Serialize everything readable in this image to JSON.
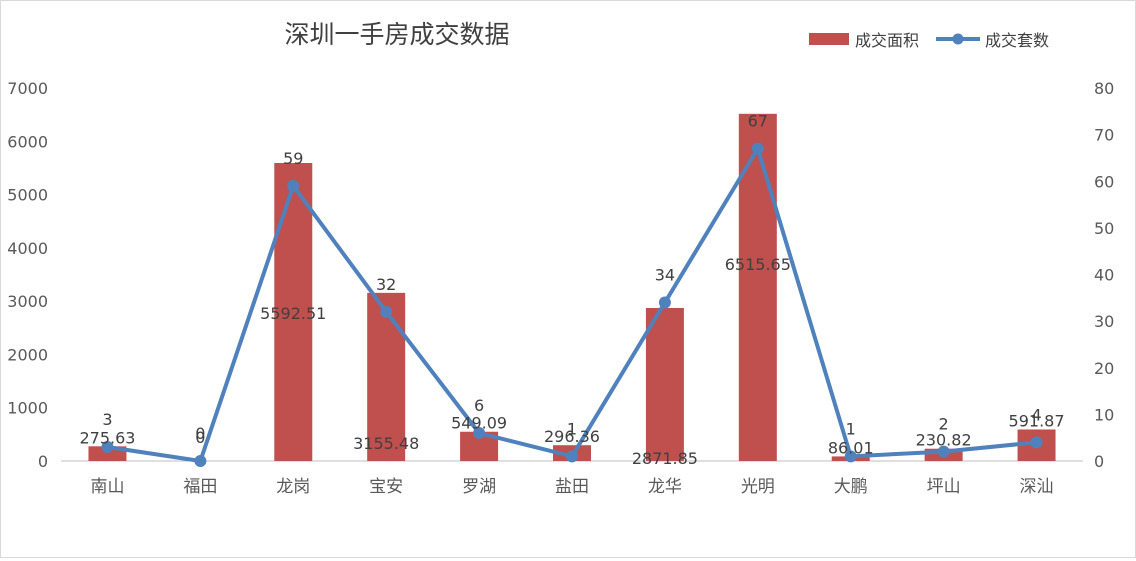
{
  "chart_data": {
    "type": "bar",
    "title": "深圳一手房成交数据",
    "categories": [
      "南山",
      "福田",
      "龙岗",
      "宝安",
      "罗湖",
      "盐田",
      "龙华",
      "光明",
      "大鹏",
      "坪山",
      "深汕"
    ],
    "series": [
      {
        "name": "成交面积",
        "type": "bar",
        "axis": "left",
        "color": "#c0504d",
        "values": [
          275.63,
          0,
          5592.51,
          3155.48,
          549.09,
          296.36,
          2871.85,
          6515.65,
          86.01,
          230.82,
          591.87
        ],
        "labels": [
          "275.63",
          "0",
          "5592.51",
          "3155.48",
          "549.09",
          "296.36",
          "2871.85",
          "6515.65",
          "86.01",
          "230.82",
          "591.87"
        ]
      },
      {
        "name": "成交套数",
        "type": "line",
        "axis": "right",
        "color": "#4f81bd",
        "values": [
          3,
          0,
          59,
          32,
          6,
          1,
          34,
          67,
          1,
          2,
          4
        ],
        "labels": [
          "3",
          "0",
          "59",
          "32",
          "6",
          "1",
          "34",
          "67",
          "1",
          "2",
          "4"
        ]
      }
    ],
    "y_left": {
      "min": 0,
      "max": 7000,
      "ticks": [
        "0",
        "1000",
        "2000",
        "3000",
        "4000",
        "5000",
        "6000",
        "7000"
      ]
    },
    "y_right": {
      "min": 0,
      "max": 80,
      "ticks": [
        "0",
        "10",
        "20",
        "30",
        "40",
        "50",
        "60",
        "70",
        "80"
      ]
    },
    "grid": false,
    "legend_position": "top-right"
  }
}
